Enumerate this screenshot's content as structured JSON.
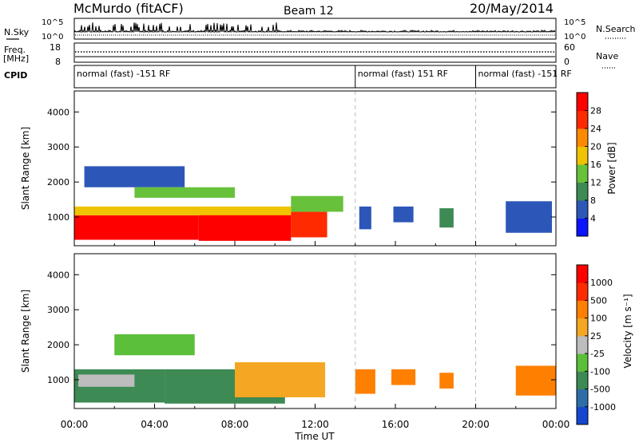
{
  "header": {
    "station": "McMurdo (fitACF)",
    "beam": "Beam 12",
    "date": "20/May/2014"
  },
  "left_labels": {
    "nsky": "N.Sky",
    "freq": "Freq.",
    "mhz": "[MHz]",
    "cpid": "CPID"
  },
  "right_labels": {
    "nsearch": "N.Search",
    "nave": "Nave"
  },
  "noise_panel": {
    "left_ticks": [
      "10^5",
      "10^0"
    ],
    "right_ticks": [
      "10^5",
      "10^0"
    ]
  },
  "freq_panel": {
    "left_ticks": [
      "18",
      "8"
    ],
    "right_ticks": [
      "60",
      "0"
    ]
  },
  "cpid_segments": [
    {
      "label": "normal (fast) -151 RF",
      "start_hour": 0,
      "end_hour": 14
    },
    {
      "label": "normal (fast) 151 RF",
      "start_hour": 14,
      "end_hour": 20
    },
    {
      "label": "normal (fast) -151 RF",
      "start_hour": 20,
      "end_hour": 24
    }
  ],
  "chart_data": [
    {
      "type": "heatmap",
      "name": "power",
      "ylabel": "Slant Range [km]",
      "xlabel": "",
      "xlim": [
        0,
        24
      ],
      "ylim": [
        180,
        4600
      ],
      "yticks": [
        "1000",
        "2000",
        "3000",
        "4000"
      ],
      "colorbar_label": "Power [dB]",
      "colorbar_ticks": [
        "4",
        "8",
        "12",
        "16",
        "20",
        "24",
        "28"
      ],
      "colors": [
        "#0a14ff",
        "#2c57b8",
        "#3d8a54",
        "#67c13a",
        "#f0c300",
        "#ff8a00",
        "#ff2a00",
        "#ff0000"
      ],
      "regions": [
        {
          "t0": 0.0,
          "t1": 6.2,
          "r0": 350,
          "r1": 1050,
          "level": 7
        },
        {
          "t0": 6.2,
          "t1": 10.8,
          "r0": 320,
          "r1": 1150,
          "level": 7
        },
        {
          "t0": 10.8,
          "t1": 12.6,
          "r0": 420,
          "r1": 1150,
          "level": 6
        },
        {
          "t0": 0.0,
          "t1": 10.8,
          "r0": 1050,
          "r1": 1300,
          "level": 4
        },
        {
          "t0": 10.8,
          "t1": 13.4,
          "r0": 1150,
          "r1": 1600,
          "level": 3
        },
        {
          "t0": 0.5,
          "t1": 5.5,
          "r0": 1850,
          "r1": 2450,
          "level": 1
        },
        {
          "t0": 3.0,
          "t1": 8.0,
          "r0": 1550,
          "r1": 1850,
          "level": 3
        },
        {
          "t0": 14.2,
          "t1": 14.8,
          "r0": 650,
          "r1": 1300,
          "level": 1
        },
        {
          "t0": 15.9,
          "t1": 16.9,
          "r0": 850,
          "r1": 1300,
          "level": 1
        },
        {
          "t0": 18.2,
          "t1": 18.9,
          "r0": 700,
          "r1": 1250,
          "level": 2
        },
        {
          "t0": 21.5,
          "t1": 23.8,
          "r0": 550,
          "r1": 1450,
          "level": 1
        }
      ]
    },
    {
      "type": "heatmap",
      "name": "velocity",
      "ylabel": "Slant Range [km]",
      "xlabel": "Time UT",
      "xlim": [
        0,
        24
      ],
      "ylim": [
        180,
        4600
      ],
      "xticks": [
        "00:00",
        "04:00",
        "08:00",
        "12:00",
        "16:00",
        "20:00",
        "00:00"
      ],
      "yticks": [
        "1000",
        "2000",
        "3000",
        "4000"
      ],
      "colorbar_label": "Velocity [m s⁻¹]",
      "colorbar_ticks": [
        "1000",
        "500",
        "100",
        "25",
        "-25",
        "-100",
        "-500",
        "-1000"
      ],
      "colors": [
        "#1446d0",
        "#2e6ea8",
        "#3d8a54",
        "#5cbf3a",
        "#bdbdbd",
        "#f5a623",
        "#ff7f00",
        "#ff2a00",
        "#ff0000"
      ],
      "regions": [
        {
          "t0": 0.0,
          "t1": 4.5,
          "r0": 350,
          "r1": 1300,
          "level": 2
        },
        {
          "t0": 4.5,
          "t1": 10.5,
          "r0": 320,
          "r1": 1300,
          "level": 2
        },
        {
          "t0": 8.0,
          "t1": 12.5,
          "r0": 500,
          "r1": 1500,
          "level": 5
        },
        {
          "t0": 0.2,
          "t1": 3.0,
          "r0": 800,
          "r1": 1150,
          "level": 4
        },
        {
          "t0": 2.0,
          "t1": 6.0,
          "r0": 1700,
          "r1": 2300,
          "level": 3
        },
        {
          "t0": 14.0,
          "t1": 15.0,
          "r0": 600,
          "r1": 1300,
          "level": 6
        },
        {
          "t0": 15.8,
          "t1": 17.0,
          "r0": 850,
          "r1": 1300,
          "level": 6
        },
        {
          "t0": 18.2,
          "t1": 18.9,
          "r0": 750,
          "r1": 1200,
          "level": 6
        },
        {
          "t0": 22.0,
          "t1": 24.0,
          "r0": 550,
          "r1": 1400,
          "level": 6
        }
      ]
    }
  ]
}
